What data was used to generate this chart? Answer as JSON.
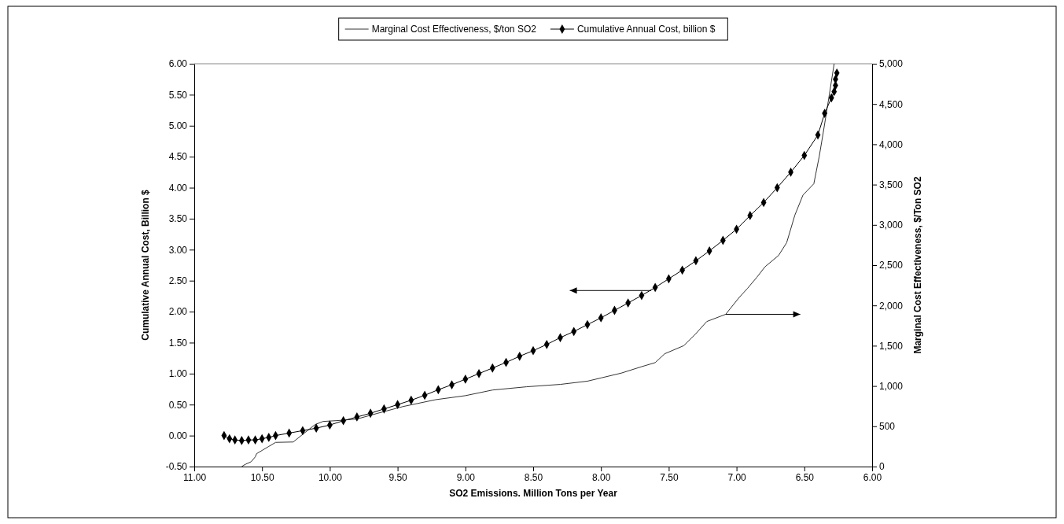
{
  "chart_data": {
    "type": "line",
    "xlabel": "SO2 Emissions. Million Tons per Year",
    "ylabel": "Cumulative Annual Cost, Billion $",
    "y2label": "Marginal Cost Effectiveness, $/Ton SO2",
    "xlim": [
      11,
      6
    ],
    "xticks": [
      {
        "value": 11,
        "label": "11.00"
      },
      {
        "value": 10.5,
        "label": "10.50"
      },
      {
        "value": 10,
        "label": "10.00"
      },
      {
        "value": 9.5,
        "label": "9.50"
      },
      {
        "value": 9,
        "label": "9.00"
      },
      {
        "value": 8.5,
        "label": "8.50"
      },
      {
        "value": 8,
        "label": "8.00"
      },
      {
        "value": 7.5,
        "label": "7.50"
      },
      {
        "value": 7,
        "label": "7.00"
      },
      {
        "value": 6.5,
        "label": "6.50"
      },
      {
        "value": 6,
        "label": "6.00"
      }
    ],
    "ylim": [
      -0.5,
      6
    ],
    "yticks": [
      {
        "value": -0.5,
        "label": "-0.50"
      },
      {
        "value": 0,
        "label": "0.00"
      },
      {
        "value": 0.5,
        "label": "0.50"
      },
      {
        "value": 1,
        "label": "1.00"
      },
      {
        "value": 1.5,
        "label": "1.50"
      },
      {
        "value": 2,
        "label": "2.00"
      },
      {
        "value": 2.5,
        "label": "2.50"
      },
      {
        "value": 3,
        "label": "3.00"
      },
      {
        "value": 3.5,
        "label": "3.50"
      },
      {
        "value": 4,
        "label": "4.00"
      },
      {
        "value": 4.5,
        "label": "4.50"
      },
      {
        "value": 5,
        "label": "5.00"
      },
      {
        "value": 5.5,
        "label": "5.50"
      },
      {
        "value": 6,
        "label": "6.00"
      }
    ],
    "y2lim": [
      0,
      5000
    ],
    "y2ticks": [
      0,
      500,
      {
        "value": 1000,
        "label": "1,000"
      },
      {
        "value": 1500,
        "label": "1,500"
      },
      {
        "value": 2000,
        "label": "2,000"
      },
      {
        "value": 2500,
        "label": "2,500"
      },
      {
        "value": 3000,
        "label": "3,000"
      },
      {
        "value": 3500,
        "label": "3,500"
      },
      {
        "value": 4000,
        "label": "4,000"
      },
      {
        "value": 4500,
        "label": "4,500"
      },
      {
        "value": 5000,
        "label": "5,000"
      }
    ],
    "grid": false,
    "legend": "top",
    "series": [
      {
        "name": "Marginal Cost Effectiveness, $/ton SO2",
        "color": "#333333",
        "axis": "y2",
        "marker": "none",
        "x": [
          10.65,
          10.62,
          10.58,
          10.55,
          10.54,
          10.5,
          10.45,
          10.4,
          10.27,
          10.2,
          10.11,
          10.05,
          9.95,
          9.8,
          9.65,
          9.46,
          9.22,
          9,
          8.8,
          8.55,
          8.3,
          8.1,
          8,
          7.85,
          7.7,
          7.6,
          7.53,
          7.39,
          7.3,
          7.22,
          7.08,
          6.98,
          6.92,
          6.85,
          6.79,
          6.69,
          6.63,
          6.57,
          6.51,
          6.43,
          6.39,
          6.36,
          6.32,
          6.28
        ],
        "values": [
          0,
          30,
          60,
          120,
          160,
          200,
          250,
          300,
          305,
          400,
          520,
          560,
          570,
          590,
          660,
          745,
          830,
          880,
          950,
          990,
          1020,
          1060,
          1100,
          1160,
          1240,
          1290,
          1400,
          1500,
          1650,
          1800,
          1890,
          2100,
          2210,
          2350,
          2480,
          2620,
          2780,
          3120,
          3370,
          3510,
          3850,
          4150,
          4570,
          5000
        ]
      },
      {
        "name": "Cumulative Annual Cost, billion $",
        "color": "#000000",
        "marker": "diamond",
        "x": [
          10.78,
          10.74,
          10.7,
          10.65,
          10.6,
          10.55,
          10.5,
          10.45,
          10.4,
          10.3,
          10.2,
          10.1,
          10,
          9.9,
          9.8,
          9.7,
          9.6,
          9.5,
          9.4,
          9.3,
          9.2,
          9.1,
          9,
          8.9,
          8.8,
          8.7,
          8.6,
          8.5,
          8.4,
          8.3,
          8.2,
          8.1,
          8,
          7.9,
          7.8,
          7.7,
          7.6,
          7.5,
          7.4,
          7.3,
          7.2,
          7.1,
          7,
          6.9,
          6.8,
          6.7,
          6.6,
          6.5,
          6.4,
          6.35,
          6.3,
          6.28,
          6.27,
          6.27,
          6.26
        ],
        "values": [
          0,
          -0.05,
          -0.07,
          -0.08,
          -0.07,
          -0.07,
          -0.05,
          -0.03,
          0,
          0.04,
          0.08,
          0.12,
          0.17,
          0.24,
          0.3,
          0.36,
          0.43,
          0.5,
          0.57,
          0.65,
          0.74,
          0.82,
          0.91,
          1,
          1.09,
          1.18,
          1.28,
          1.37,
          1.47,
          1.58,
          1.68,
          1.79,
          1.9,
          2.02,
          2.14,
          2.26,
          2.39,
          2.53,
          2.67,
          2.82,
          2.98,
          3.15,
          3.33,
          3.55,
          3.76,
          4,
          4.25,
          4.52,
          4.85,
          5.2,
          5.45,
          5.55,
          5.65,
          5.75,
          5.85
        ]
      }
    ]
  }
}
